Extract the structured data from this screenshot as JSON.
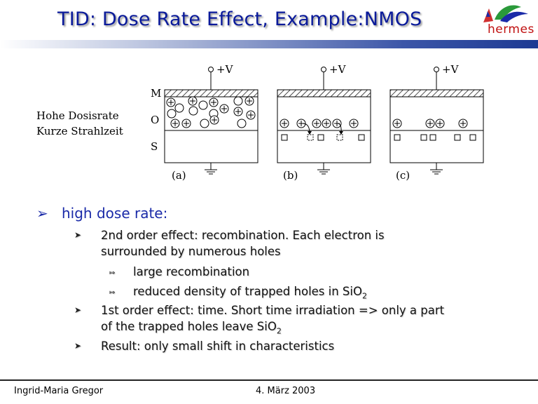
{
  "slide": {
    "title": "TID: Dose Rate Effect, Example:NMOS",
    "logo": "hermes"
  },
  "figure": {
    "voltage_label": "+V",
    "layer_labels": [
      "M",
      "O",
      "S"
    ],
    "side_text": [
      "Hohe Dosisrate",
      "Kurze Strahlzeit"
    ],
    "panels": [
      "(a)",
      "(b)",
      "(c)"
    ]
  },
  "bullets": {
    "main": "high dose rate:",
    "item1_line1": "2nd order effect: recombination. Each electron is",
    "item1_line2": "surrounded by numerous holes",
    "sub1": "large recombination",
    "sub2_text": "reduced density of trapped holes in SiO",
    "sub2_subscript": "2",
    "item2_line1": "1st order effect: time. Short time irradiation => only a part",
    "item2_line2_text": "of the trapped holes leave SiO",
    "item2_line2_subscript": "2",
    "item3": "Result: only small shift in characteristics"
  },
  "footer": {
    "author": "Ingrid-Maria Gregor",
    "date": "4. März 2003"
  },
  "colors": {
    "title": "#0a1a9a",
    "bullet_main": "#1a2aa8",
    "bar_dark": "#1d3a93",
    "logo_text": "#c01010"
  },
  "icons": {
    "logo": "hermes-bird-logo",
    "bullet_main": "arrowhead-bullet",
    "bullet_sub": "triangle-bullet",
    "bullet_sub2": "double-arrow-bullet"
  }
}
